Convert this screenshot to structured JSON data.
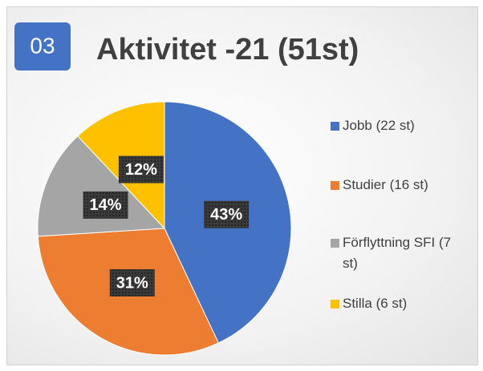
{
  "chart_data": {
    "type": "pie",
    "badge": "03",
    "title": "Aktivitet -21 (51st)",
    "categories": [
      "Jobb (22 st)",
      "Studier (16 st)",
      "Förflyttning SFI (7 st)",
      "Stilla (6 st)"
    ],
    "values": [
      43,
      31,
      14,
      12
    ],
    "value_labels": [
      "43%",
      "31%",
      "14%",
      "12%"
    ],
    "colors": [
      "#4472c4",
      "#ed7d31",
      "#a5a5a5",
      "#ffc000"
    ],
    "legend": "right"
  }
}
